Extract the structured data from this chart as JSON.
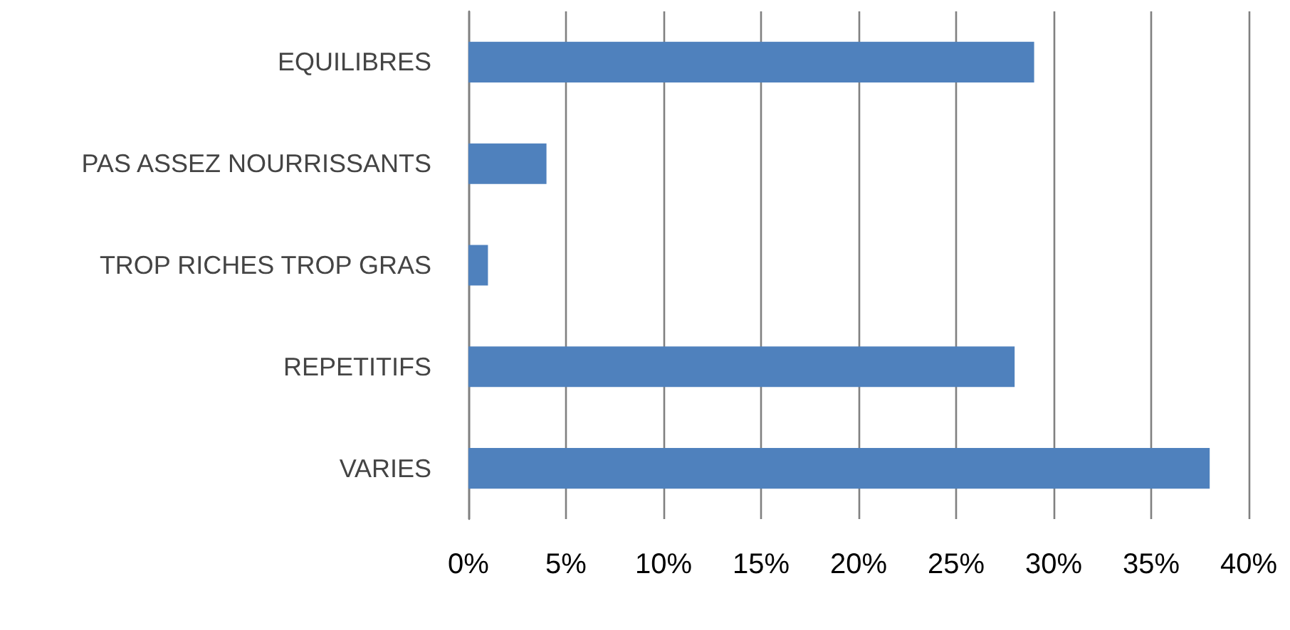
{
  "chart_data": {
    "type": "bar",
    "orientation": "horizontal",
    "categories": [
      "EQUILIBRES",
      "PAS ASSEZ NOURRISSANTS",
      "TROP RICHES TROP GRAS",
      "REPETITIFS",
      "VARIES"
    ],
    "values": [
      29,
      4,
      1,
      28,
      38
    ],
    "color": "#4f81bd",
    "xlim": [
      0,
      40
    ],
    "xticks": [
      {
        "value": 0,
        "label": "0%"
      },
      {
        "value": 5,
        "label": "5%"
      },
      {
        "value": 10,
        "label": "10%"
      },
      {
        "value": 15,
        "label": "15%"
      },
      {
        "value": 20,
        "label": "20%"
      },
      {
        "value": 25,
        "label": "25%"
      },
      {
        "value": 30,
        "label": "30%"
      },
      {
        "value": 35,
        "label": "35%"
      },
      {
        "value": 40,
        "label": "40%"
      }
    ],
    "grid": "x"
  }
}
